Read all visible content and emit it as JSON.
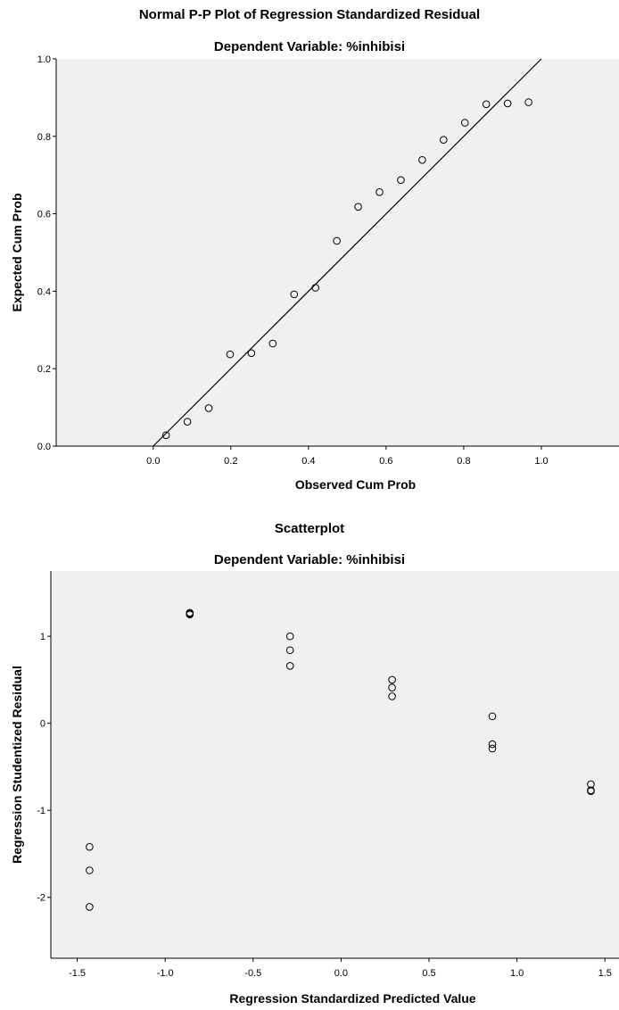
{
  "chart_data": [
    {
      "type": "scatter",
      "title": "Normal P-P Plot of Regression Standardized Residual",
      "subtitle": "Dependent Variable: %inhibisi",
      "xlabel": "Observed Cum Prob",
      "ylabel": "Expected Cum Prob",
      "xlim": [
        -0.25,
        1.2
      ],
      "ylim": [
        0,
        1
      ],
      "x_ticks": [
        "0.0",
        "0.2",
        "0.4",
        "0.6",
        "0.8",
        "1.0"
      ],
      "y_ticks": [
        "0.0",
        "0.2",
        "0.4",
        "0.6",
        "0.8",
        "1.0"
      ],
      "reference_line": [
        [
          0,
          0
        ],
        [
          1,
          1
        ]
      ],
      "grid": false,
      "points": {
        "x": [
          0.033,
          0.088,
          0.143,
          0.198,
          0.253,
          0.308,
          0.363,
          0.418,
          0.473,
          0.528,
          0.583,
          0.638,
          0.693,
          0.748,
          0.803,
          0.858,
          0.913,
          0.967
        ],
        "y": [
          0.028,
          0.063,
          0.098,
          0.237,
          0.24,
          0.265,
          0.392,
          0.409,
          0.53,
          0.618,
          0.656,
          0.687,
          0.739,
          0.791,
          0.835,
          0.883,
          0.885,
          0.888
        ]
      }
    },
    {
      "type": "scatter",
      "title": "Scatterplot",
      "subtitle": "Dependent Variable: %inhibisi",
      "xlabel": "Regression Standardized Predicted Value",
      "ylabel": "Regression Studentized Residual",
      "xlim": [
        -1.65,
        1.58
      ],
      "ylim": [
        -2.7,
        1.75
      ],
      "x_ticks": [
        "-1.5",
        "-1.0",
        "-0.5",
        "0.0",
        "0.5",
        "1.0",
        "1.5"
      ],
      "y_ticks": [
        "1",
        "0",
        "-1",
        "-2"
      ],
      "grid": false,
      "points": {
        "x": [
          -0.86,
          -0.86,
          -0.86,
          -0.29,
          -0.29,
          -0.29,
          0.29,
          0.29,
          0.29,
          0.86,
          0.86,
          0.86,
          1.42,
          1.42,
          1.42,
          -1.43,
          -1.43,
          -1.43
        ],
        "y": [
          1.27,
          1.26,
          1.25,
          1.0,
          0.84,
          0.66,
          0.5,
          0.41,
          0.31,
          0.08,
          -0.24,
          -0.29,
          -0.7,
          -0.77,
          -0.78,
          -1.42,
          -1.69,
          -2.11
        ]
      }
    }
  ]
}
